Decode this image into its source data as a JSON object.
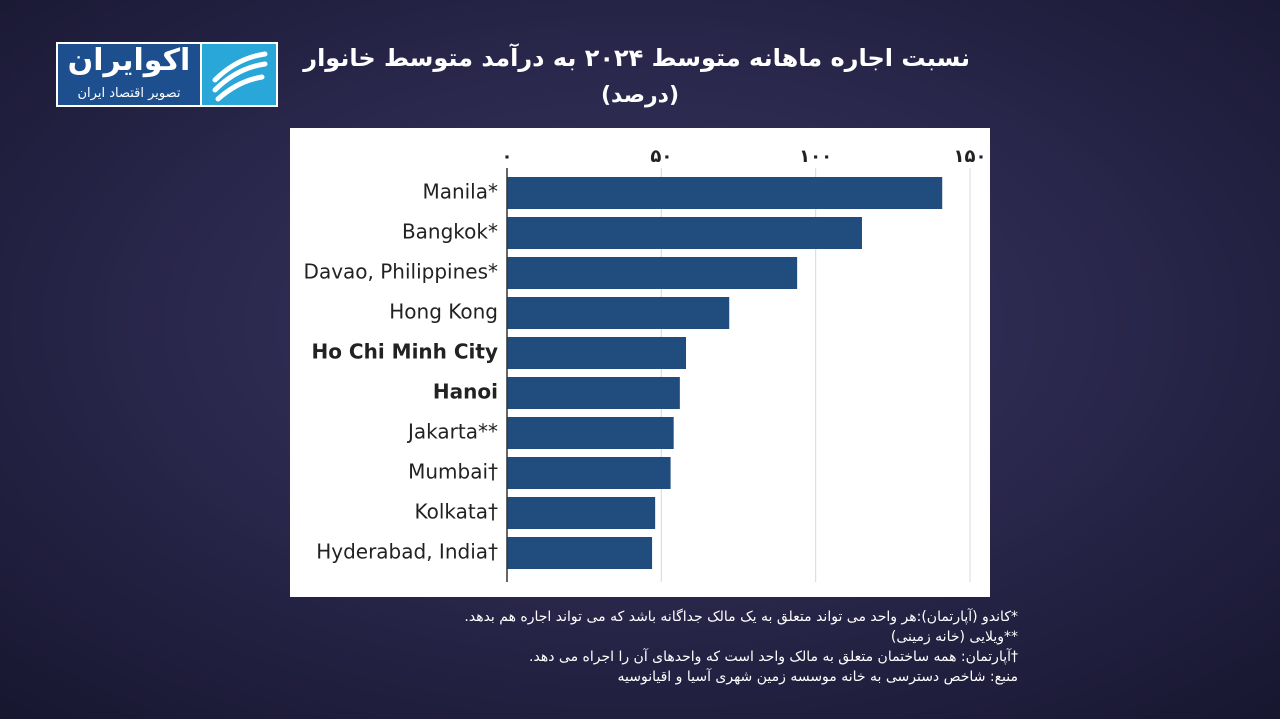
{
  "logo": {
    "name": "اکوایران",
    "tagline": "تصویر اقتصاد ایران"
  },
  "chart_data": {
    "type": "bar",
    "orientation": "horizontal",
    "title": "نسبت اجاره ماهانه متوسط ۲۰۲۴ به درآمد متوسط خانوار",
    "subtitle": "(درصد)",
    "categories": [
      "Manila*",
      "Bangkok*",
      "Davao, Philippines*",
      "Hong Kong",
      "Ho Chi Minh City",
      "Hanoi",
      "Jakarta**",
      "Mumbai†",
      "Kolkata†",
      "Hyderabad, India†"
    ],
    "bold": [
      false,
      false,
      false,
      false,
      true,
      true,
      false,
      false,
      false,
      false
    ],
    "values": [
      141,
      115,
      94,
      72,
      58,
      56,
      54,
      53,
      48,
      47
    ],
    "color": "#214c7e",
    "xlim": [
      0,
      150
    ],
    "xticks": [
      {
        "value": 0,
        "label": "۰"
      },
      {
        "value": 50,
        "label": "۵۰"
      },
      {
        "value": 100,
        "label": "۱۰۰"
      },
      {
        "value": 150,
        "label": "۱۵۰"
      }
    ],
    "grid": true,
    "footnotes": [
      "*کاندو (آپارتمان):هر واحد می تواند متعلق به یک مالک جداگانه باشد که می تواند اجاره هم بدهد.",
      "**ویلایی (خانه زمینی)",
      "†آپارتمان: همه ساختمان متعلق به مالک واحد است که واحدهای آن را اجراه می دهد.",
      "منبع: شاخص دسترسی به خانه موسسه زمین شهری آسیا و اقیانوسیه"
    ]
  }
}
